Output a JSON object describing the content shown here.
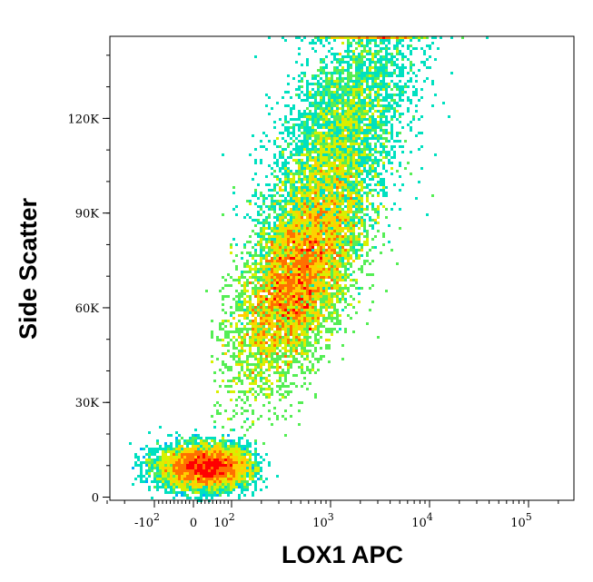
{
  "chart_data": {
    "type": "scatter",
    "subtype": "flow-cytometry-density-plot",
    "xlabel": "LOX1 APC",
    "ylabel": "Side Scatter",
    "x_scale": "biexponential",
    "xlim": [
      -400,
      200000
    ],
    "ylim": [
      -1000,
      146000
    ],
    "x_ticks": [
      {
        "value": -100,
        "base": "-10",
        "exp": "2"
      },
      {
        "value": 0,
        "base": "0",
        "exp": ""
      },
      {
        "value": 100,
        "base": "10",
        "exp": "2"
      },
      {
        "value": 1000,
        "base": "10",
        "exp": "3"
      },
      {
        "value": 10000,
        "base": "10",
        "exp": "4"
      },
      {
        "value": 100000,
        "base": "10",
        "exp": "5"
      }
    ],
    "y_ticks": [
      {
        "value": 0,
        "label": "0"
      },
      {
        "value": 30000,
        "label": "30K"
      },
      {
        "value": 60000,
        "label": "60K"
      },
      {
        "value": 90000,
        "label": "90K"
      },
      {
        "value": 120000,
        "label": "120K"
      }
    ],
    "density_colormap": [
      "#0000ff",
      "#00aaff",
      "#00e0c0",
      "#55ee55",
      "#d8f000",
      "#ffd000",
      "#ff7000",
      "#ff0000"
    ],
    "populations": [
      {
        "x_center": 30,
        "x_spread": 60,
        "y_center": 9500,
        "y_spread": 3500,
        "share": 0.22
      },
      {
        "x_center": 450,
        "x_spread": 0.32,
        "y_center": 68000,
        "y_spread": 17000,
        "share": 0.58
      },
      {
        "x_center": 1200,
        "x_spread": 0.35,
        "y_center": 112000,
        "y_spread": 22000,
        "share": 0.2
      }
    ],
    "grid": false,
    "legend": "none"
  }
}
